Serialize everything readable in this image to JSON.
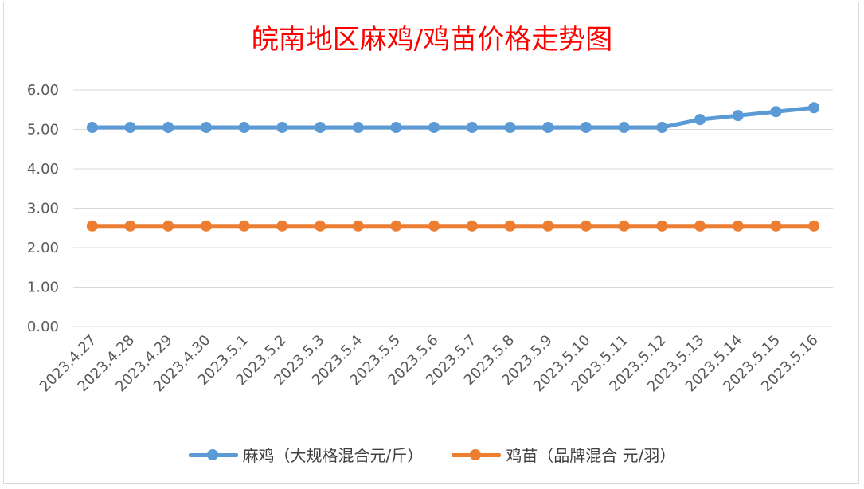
{
  "chart_data": {
    "type": "line",
    "title": "皖南地区麻鸡/鸡苗价格走势图",
    "categories": [
      "2023.4.27",
      "2023.4.28",
      "2023.4.29",
      "2023.4.30",
      "2023.5.1",
      "2023.5.2",
      "2023.5.3",
      "2023.5.4",
      "2023.5.5",
      "2023.5.6",
      "2023.5.7",
      "2023.5.8",
      "2023.5.9",
      "2023.5.10",
      "2023.5.11",
      "2023.5.12",
      "2023.5.13",
      "2023.5.14",
      "2023.5.15",
      "2023.5.16"
    ],
    "series": [
      {
        "name": "麻鸡（大规格混合元/斤）",
        "color": "#5b9bd5",
        "values": [
          5.05,
          5.05,
          5.05,
          5.05,
          5.05,
          5.05,
          5.05,
          5.05,
          5.05,
          5.05,
          5.05,
          5.05,
          5.05,
          5.05,
          5.05,
          5.05,
          5.25,
          5.35,
          5.45,
          5.55
        ]
      },
      {
        "name": "鸡苗（品牌混合 元/羽）",
        "color": "#ed7d31",
        "values": [
          2.55,
          2.55,
          2.55,
          2.55,
          2.55,
          2.55,
          2.55,
          2.55,
          2.55,
          2.55,
          2.55,
          2.55,
          2.55,
          2.55,
          2.55,
          2.55,
          2.55,
          2.55,
          2.55,
          2.55
        ]
      }
    ],
    "ylim": [
      0,
      6
    ],
    "yticks": [
      "0.00",
      "1.00",
      "2.00",
      "3.00",
      "4.00",
      "5.00",
      "6.00"
    ],
    "grid": true,
    "legend": "bottom"
  }
}
